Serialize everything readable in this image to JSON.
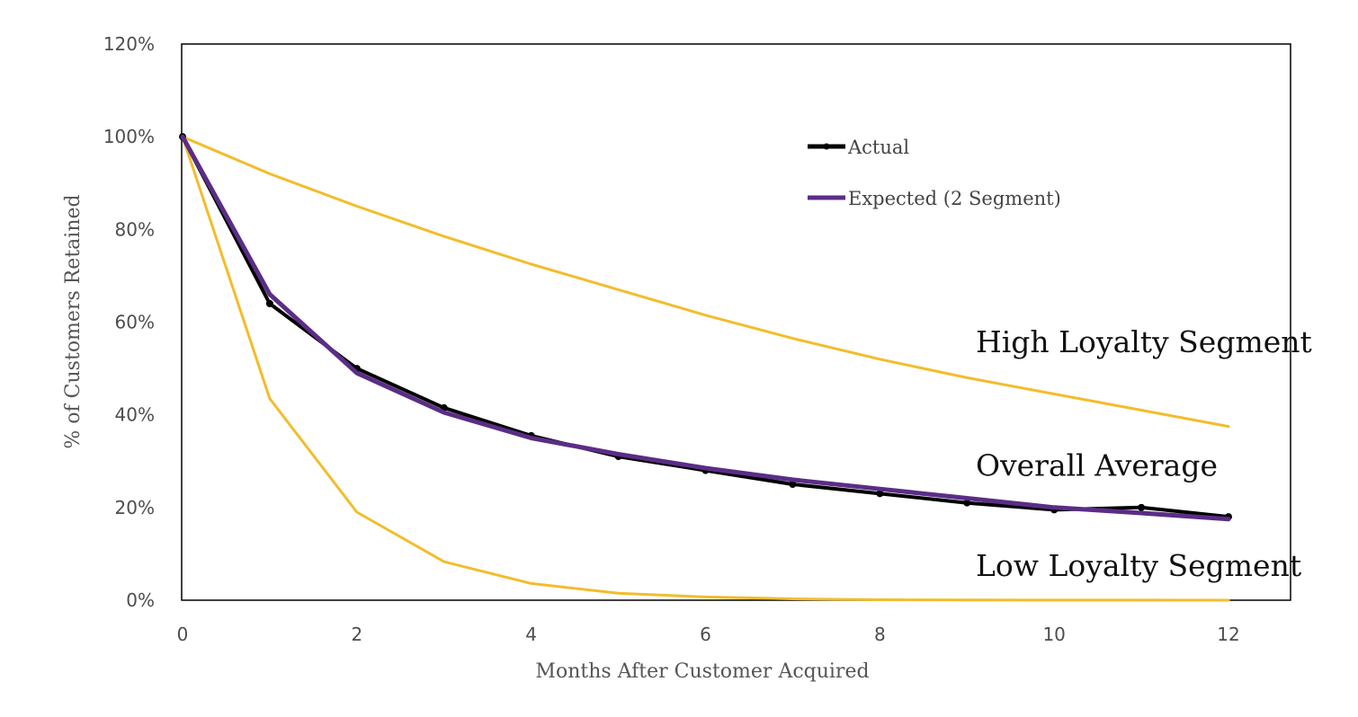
{
  "chart_data": {
    "type": "line",
    "title": "",
    "xlabel": "Months After Customer Acquired",
    "ylabel": "% of Customers Retained",
    "xlim": [
      0,
      12
    ],
    "ylim": [
      0,
      120
    ],
    "x_ticks": [
      "0",
      "2",
      "4",
      "6",
      "8",
      "10",
      "12"
    ],
    "y_ticks": [
      "0%",
      "20%",
      "40%",
      "60%",
      "80%",
      "100%",
      "120%"
    ],
    "grid": false,
    "legend_position": "top-center",
    "series": [
      {
        "name": "Actual",
        "color": "#000000",
        "markers": true,
        "x": [
          0,
          1,
          2,
          3,
          4,
          5,
          6,
          7,
          8,
          9,
          10,
          11,
          12
        ],
        "values": [
          100,
          64,
          50,
          41.5,
          35.5,
          31,
          28,
          25,
          23,
          21,
          19.5,
          20,
          18
        ]
      },
      {
        "name": "Expected (2 Segment)",
        "color": "#5b2d86",
        "markers": false,
        "x": [
          0,
          1,
          2,
          3,
          4,
          5,
          6,
          7,
          8,
          9,
          10,
          11,
          12
        ],
        "values": [
          100,
          66,
          49,
          40.5,
          35,
          31.5,
          28.5,
          26,
          24,
          22,
          20,
          18.8,
          17.5
        ]
      },
      {
        "color": "#f2bd2c",
        "markers": false,
        "x": [
          0,
          1,
          2,
          3,
          4,
          5,
          6,
          7,
          8,
          9,
          10,
          11,
          12
        ],
        "values": [
          100,
          92,
          85,
          78.5,
          72.5,
          67,
          61.5,
          56.5,
          52,
          48,
          44.5,
          41,
          37.5
        ]
      },
      {
        "color": "#f2bd2c",
        "markers": false,
        "x": [
          0,
          1,
          2,
          3,
          4,
          5,
          6,
          7,
          8,
          9,
          10,
          11,
          12
        ],
        "values": [
          100,
          43.5,
          19,
          8.3,
          3.6,
          1.5,
          0.7,
          0.3,
          0.1,
          0.05,
          0.02,
          0.01,
          0
        ]
      }
    ],
    "annotations": [
      {
        "text": "High Loyalty Segment",
        "x": 9.1,
        "y": 55.8
      },
      {
        "text": "Overall Average",
        "x": 9.1,
        "y": 29.2
      },
      {
        "text": "Low Loyalty Segment",
        "x": 9.1,
        "y": 7.6
      }
    ]
  }
}
